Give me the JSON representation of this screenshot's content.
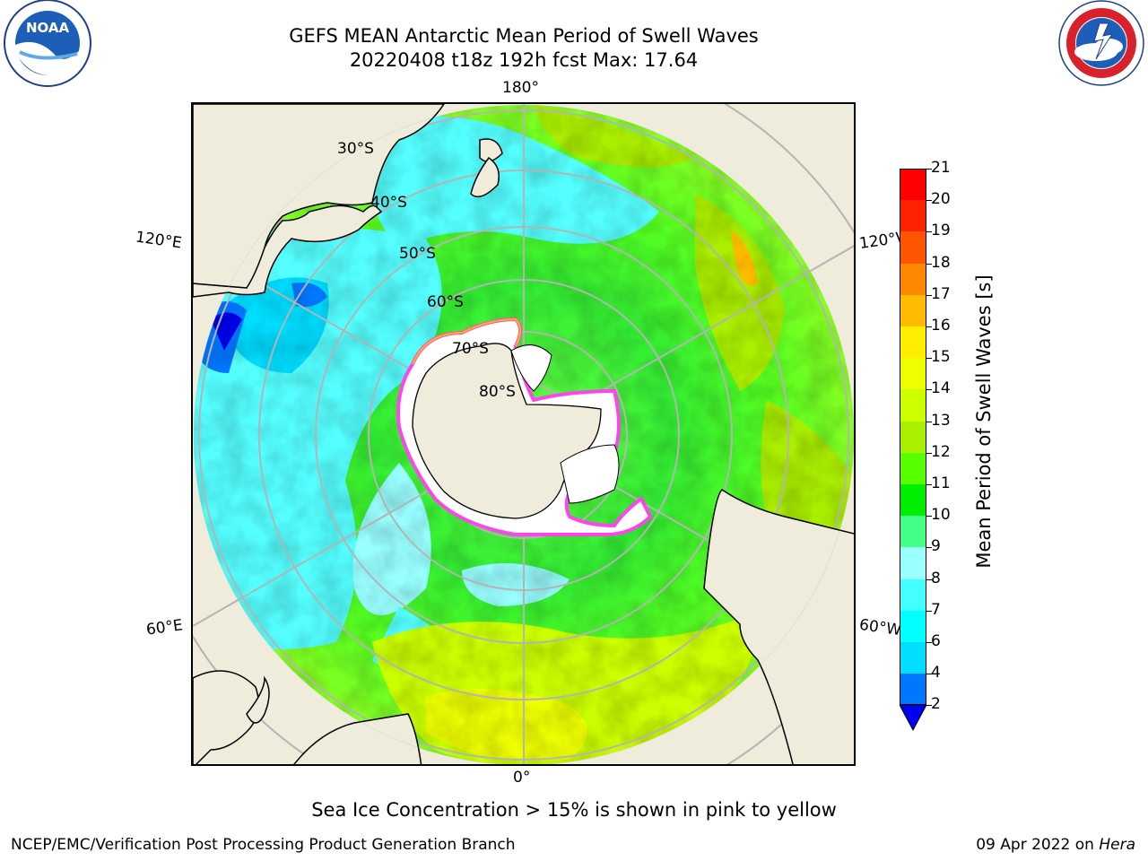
{
  "title": {
    "line1": "GEFS MEAN Antarctic Mean Period of Swell Waves",
    "line2": "20220408 t18z 192h fcst   Max: 17.64"
  },
  "logos": {
    "left": {
      "name": "noaa-logo",
      "text": "NOAA",
      "ring_text": "NATIONAL OCEANIC AND ATMOSPHERIC ADMINISTRATION  U.S. DEPARTMENT OF COMMERCE"
    },
    "right": {
      "name": "nws-logo",
      "ring_text": "NATIONAL WEATHER SERVICE"
    }
  },
  "map": {
    "projection": "south-polar-stereographic",
    "longitude_labels": {
      "top": "180°",
      "bottom": "0°",
      "left_upper": "120°E",
      "left_lower": "60°E",
      "right_upper": "120°W",
      "right_lower": "60°W"
    },
    "latitude_labels": [
      "30°S",
      "40°S",
      "50°S",
      "60°S",
      "70°S",
      "80°S"
    ],
    "colors": {
      "land": "#efecdc",
      "ice": "#ffffff",
      "ice_edge": "#ff44ee",
      "grid": "#b4b4b4",
      "coast": "#000000"
    }
  },
  "colorbar": {
    "label": "Mean Period of Swell Waves [s]",
    "ticks": [
      "2",
      "4",
      "6",
      "7",
      "8",
      "9",
      "10",
      "11",
      "12",
      "13",
      "14",
      "15",
      "16",
      "17",
      "18",
      "19",
      "20",
      "21"
    ],
    "colors": [
      "#0000ee",
      "#0077ff",
      "#00ddff",
      "#00ffff",
      "#44ffff",
      "#99ffff",
      "#44ff88",
      "#00ee00",
      "#55ff00",
      "#aaee00",
      "#ccff00",
      "#eeff00",
      "#ffee00",
      "#ffbb00",
      "#ff8800",
      "#ff5500",
      "#ff2200",
      "#ff0000"
    ],
    "extend": "min"
  },
  "note": "Sea Ice Concentration > 15% is shown in pink to yellow",
  "footer": {
    "left": "NCEP/EMC/Verification Post Processing Product Generation Branch",
    "right_date": "09 Apr 2022 on ",
    "right_host": "Hera"
  }
}
